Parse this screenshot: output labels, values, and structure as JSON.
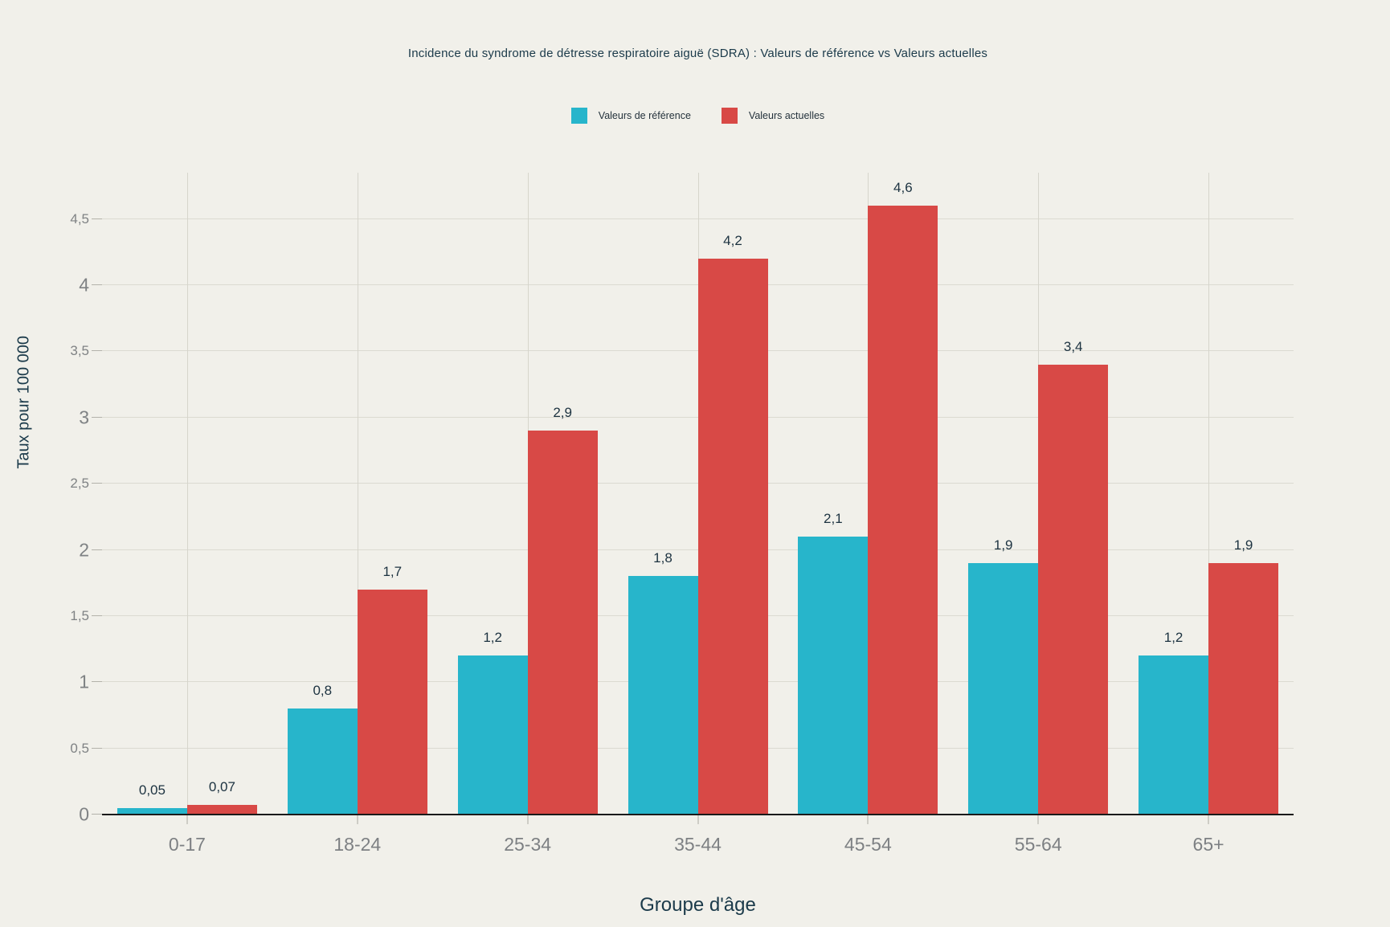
{
  "title": "Incidence du syndrome de détresse respiratoire aiguë (SDRA) : Valeurs de référence vs Valeurs actuelles",
  "legend": {
    "items": [
      {
        "label": "Valeurs de référence",
        "color": "#27B5CB"
      },
      {
        "label": "Valeurs actuelles",
        "color": "#D84946"
      }
    ]
  },
  "x_axis": {
    "title": "Groupe d'âge"
  },
  "y_axis": {
    "title": "Taux pour 100 000"
  },
  "colors": {
    "background": "#F1F0EA",
    "bar_reference": "#27B5CB",
    "bar_current": "#D84946",
    "grid": "#D6D5CC",
    "axis_line": "#1A1A1A",
    "tick_label_gray": "#7F8284",
    "text_dark": "#1B3A4A",
    "value_label": "#1C3240"
  },
  "chart_data": {
    "type": "bar",
    "title": "Incidence du syndrome de détresse respiratoire aiguë (SDRA) : Valeurs de référence vs Valeurs actuelles",
    "xlabel": "Groupe d'âge",
    "ylabel": "Taux pour 100 000",
    "categories": [
      "0-17",
      "18-24",
      "25-34",
      "35-44",
      "45-54",
      "55-64",
      "65+"
    ],
    "series": [
      {
        "name": "Valeurs de référence",
        "color": "#27B5CB",
        "values": [
          0.05,
          0.8,
          1.2,
          1.8,
          2.1,
          1.9,
          1.2
        ],
        "labels": [
          "0,05",
          "0,8",
          "1,2",
          "1,8",
          "2,1",
          "1,9",
          "1,2"
        ]
      },
      {
        "name": "Valeurs actuelles",
        "color": "#D84946",
        "values": [
          0.07,
          1.7,
          2.9,
          4.2,
          4.6,
          3.4,
          1.9
        ],
        "labels": [
          "0,07",
          "1,7",
          "2,9",
          "4,2",
          "4,6",
          "3,4",
          "1,9"
        ]
      }
    ],
    "ylim": [
      0,
      4.85
    ],
    "yticks": [
      0,
      0.5,
      1,
      1.5,
      2,
      2.5,
      3,
      3.5,
      4,
      4.5
    ],
    "ytick_labels": [
      "0",
      "0,5",
      "1",
      "1,5",
      "2",
      "2,5",
      "3",
      "3,5",
      "4",
      "4,5"
    ],
    "grid": true,
    "legend_position": "top-center",
    "value_labels_shown": true
  }
}
